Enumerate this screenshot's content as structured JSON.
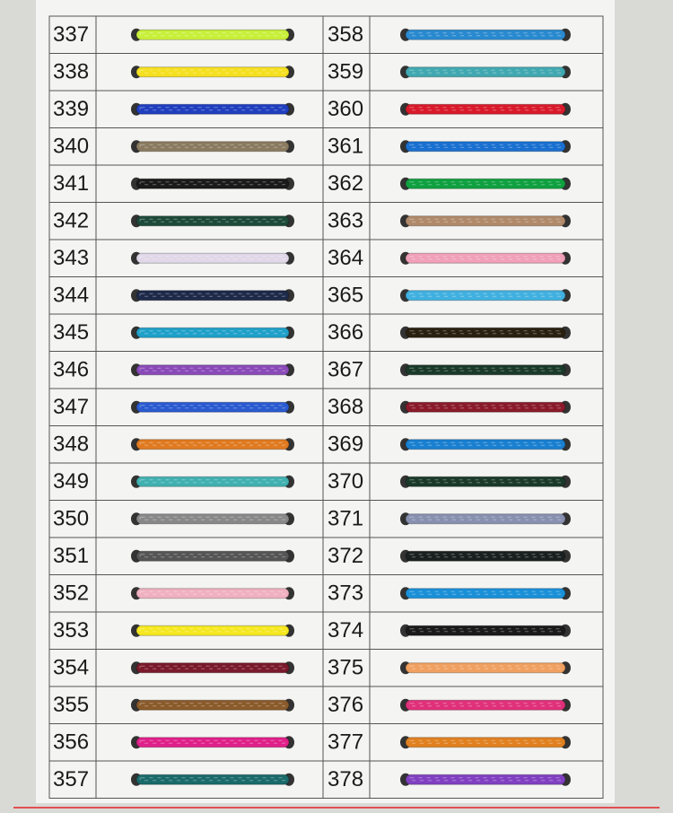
{
  "card": {
    "rows": [
      {
        "left": {
          "code": "337",
          "color": "#c8f03a"
        },
        "right": {
          "code": "358",
          "color": "#2a8ad0"
        }
      },
      {
        "left": {
          "code": "338",
          "color": "#f5e020"
        },
        "right": {
          "code": "359",
          "color": "#40a8b0"
        }
      },
      {
        "left": {
          "code": "339",
          "color": "#1f3fbf"
        },
        "right": {
          "code": "360",
          "color": "#d81a2a"
        }
      },
      {
        "left": {
          "code": "340",
          "color": "#8a7a60"
        },
        "right": {
          "code": "361",
          "color": "#1a70d0"
        }
      },
      {
        "left": {
          "code": "341",
          "color": "#1a1a1a"
        },
        "right": {
          "code": "362",
          "color": "#10a040"
        }
      },
      {
        "left": {
          "code": "342",
          "color": "#1d4a3a"
        },
        "right": {
          "code": "363",
          "color": "#b08a6a"
        }
      },
      {
        "left": {
          "code": "343",
          "color": "#e0d8e8"
        },
        "right": {
          "code": "364",
          "color": "#f0a0b8"
        }
      },
      {
        "left": {
          "code": "344",
          "color": "#1e2a4a"
        },
        "right": {
          "code": "365",
          "color": "#40b0e0"
        }
      },
      {
        "left": {
          "code": "345",
          "color": "#1fa0c8"
        },
        "right": {
          "code": "366",
          "color": "#2a2010"
        }
      },
      {
        "left": {
          "code": "346",
          "color": "#8a4ab8"
        },
        "right": {
          "code": "367",
          "color": "#1a3a2a"
        }
      },
      {
        "left": {
          "code": "347",
          "color": "#2a5ad0"
        },
        "right": {
          "code": "368",
          "color": "#8a1a2a"
        }
      },
      {
        "left": {
          "code": "348",
          "color": "#e07a20"
        },
        "right": {
          "code": "369",
          "color": "#1a80d0"
        }
      },
      {
        "left": {
          "code": "349",
          "color": "#40b0b0"
        },
        "right": {
          "code": "370",
          "color": "#1a3a2a"
        }
      },
      {
        "left": {
          "code": "350",
          "color": "#888888"
        },
        "right": {
          "code": "371",
          "color": "#8890b0"
        }
      },
      {
        "left": {
          "code": "351",
          "color": "#555555"
        },
        "right": {
          "code": "372",
          "color": "#1a2020"
        }
      },
      {
        "left": {
          "code": "352",
          "color": "#f0b0c0"
        },
        "right": {
          "code": "373",
          "color": "#1a90d8"
        }
      },
      {
        "left": {
          "code": "353",
          "color": "#f5e820"
        },
        "right": {
          "code": "374",
          "color": "#1a1a1a"
        }
      },
      {
        "left": {
          "code": "354",
          "color": "#7a1a2a"
        },
        "right": {
          "code": "375",
          "color": "#f0a060"
        }
      },
      {
        "left": {
          "code": "355",
          "color": "#8a5a2a"
        },
        "right": {
          "code": "376",
          "color": "#e0307a"
        }
      },
      {
        "left": {
          "code": "356",
          "color": "#e0208a"
        },
        "right": {
          "code": "377",
          "color": "#e08020"
        }
      },
      {
        "left": {
          "code": "357",
          "color": "#1a6a6a"
        },
        "right": {
          "code": "378",
          "color": "#8040c0"
        }
      }
    ]
  }
}
